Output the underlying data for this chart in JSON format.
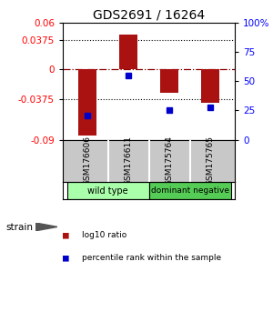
{
  "title": "GDS2691 / 16264",
  "samples": [
    "GSM176606",
    "GSM176611",
    "GSM175764",
    "GSM175765"
  ],
  "log10_ratio": [
    -0.085,
    0.045,
    -0.03,
    -0.043
  ],
  "percentile_rank": [
    21,
    55,
    25,
    28
  ],
  "left_ylim": [
    -0.09,
    0.06
  ],
  "left_yticks": [
    -0.09,
    -0.0375,
    0,
    0.0375,
    0.06
  ],
  "left_yticklabels": [
    "-0.09",
    "-0.0375",
    "0",
    "0.0375",
    "0.06"
  ],
  "right_ylim": [
    0,
    100
  ],
  "right_yticks": [
    0,
    25,
    50,
    75,
    100
  ],
  "right_yticklabels": [
    "0",
    "25",
    "50",
    "75",
    "100%"
  ],
  "bar_color": "#AA1111",
  "point_color": "#0000CC",
  "bar_width": 0.45,
  "group_label": "strain",
  "group1_label": "wild type",
  "group2_label": "dominant negative",
  "group1_color": "#AAFFAA",
  "group2_color": "#55CC55",
  "sample_bg": "#C8C8C8",
  "legend_red": "log10 ratio",
  "legend_blue": "percentile rank within the sample"
}
